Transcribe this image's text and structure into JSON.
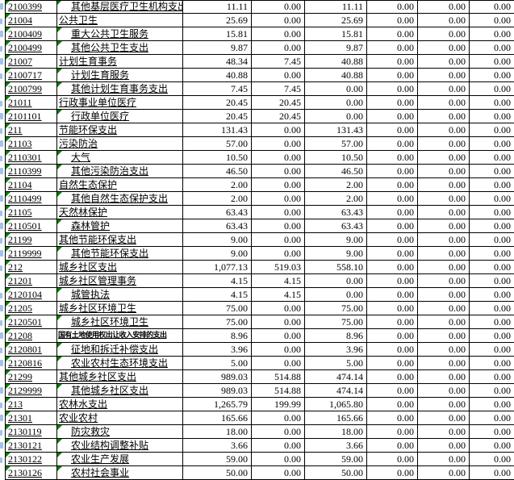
{
  "app": {
    "description": "spreadsheet budget expenditure table (cropped, no headers visible)"
  },
  "colors": {
    "background": "#ffffff",
    "text": "#000000",
    "grid_border": "#000000",
    "error_triangle": "#008000",
    "clipped_text_fragment": "#a3c3e8"
  },
  "icons": {
    "error_indicator": "green corner triangle (number-stored-as-text indicator)"
  },
  "table": {
    "numeric_column_count": 6,
    "rows": [
      {
        "code": "2100399",
        "name": "其他基层医疗卫生机构支出",
        "indent": true,
        "shrink": false,
        "values": [
          "11.11",
          "0.00",
          "11.11",
          "0.00",
          "0.00",
          "0.00"
        ]
      },
      {
        "code": "21004",
        "name": "公共卫生",
        "indent": false,
        "shrink": false,
        "values": [
          "25.69",
          "0.00",
          "25.69",
          "0.00",
          "0.00",
          "0.00"
        ]
      },
      {
        "code": "2100409",
        "name": "重大公共卫生服务",
        "indent": true,
        "shrink": false,
        "values": [
          "15.81",
          "0.00",
          "15.81",
          "0.00",
          "0.00",
          "0.00"
        ]
      },
      {
        "code": "2100499",
        "name": "其他公共卫生支出",
        "indent": true,
        "shrink": false,
        "values": [
          "9.87",
          "0.00",
          "9.87",
          "0.00",
          "0.00",
          "0.00"
        ]
      },
      {
        "code": "21007",
        "name": "计划生育事务",
        "indent": false,
        "shrink": false,
        "values": [
          "48.34",
          "7.45",
          "40.88",
          "0.00",
          "0.00",
          "0.00"
        ]
      },
      {
        "code": "2100717",
        "name": "计划生育服务",
        "indent": true,
        "shrink": false,
        "values": [
          "40.88",
          "0.00",
          "40.88",
          "0.00",
          "0.00",
          "0.00"
        ]
      },
      {
        "code": "2100799",
        "name": "其他计划生育事务支出",
        "indent": true,
        "shrink": false,
        "values": [
          "7.45",
          "7.45",
          "0.00",
          "0.00",
          "0.00",
          "0.00"
        ]
      },
      {
        "code": "21011",
        "name": "行政事业单位医疗",
        "indent": false,
        "shrink": false,
        "values": [
          "20.45",
          "20.45",
          "0.00",
          "0.00",
          "0.00",
          "0.00"
        ]
      },
      {
        "code": "2101101",
        "name": "行政单位医疗",
        "indent": true,
        "shrink": false,
        "values": [
          "20.45",
          "20.45",
          "0.00",
          "0.00",
          "0.00",
          "0.00"
        ]
      },
      {
        "code": "211",
        "name": "节能环保支出",
        "indent": false,
        "shrink": false,
        "values": [
          "131.43",
          "0.00",
          "131.43",
          "0.00",
          "0.00",
          "0.00"
        ]
      },
      {
        "code": "21103",
        "name": "污染防治",
        "indent": false,
        "shrink": false,
        "values": [
          "57.00",
          "0.00",
          "57.00",
          "0.00",
          "0.00",
          "0.00"
        ]
      },
      {
        "code": "2110301",
        "name": "大气",
        "indent": true,
        "shrink": false,
        "values": [
          "10.50",
          "0.00",
          "10.50",
          "0.00",
          "0.00",
          "0.00"
        ]
      },
      {
        "code": "2110399",
        "name": "其他污染防治支出",
        "indent": true,
        "shrink": false,
        "values": [
          "46.50",
          "0.00",
          "46.50",
          "0.00",
          "0.00",
          "0.00"
        ]
      },
      {
        "code": "21104",
        "name": "自然生态保护",
        "indent": false,
        "shrink": false,
        "values": [
          "2.00",
          "0.00",
          "2.00",
          "0.00",
          "0.00",
          "0.00"
        ]
      },
      {
        "code": "2110499",
        "name": "其他自然生态保护支出",
        "indent": true,
        "shrink": false,
        "values": [
          "2.00",
          "0.00",
          "2.00",
          "0.00",
          "0.00",
          "0.00"
        ]
      },
      {
        "code": "21105",
        "name": "天然林保护",
        "indent": false,
        "shrink": false,
        "values": [
          "63.43",
          "0.00",
          "63.43",
          "0.00",
          "0.00",
          "0.00"
        ]
      },
      {
        "code": "2110501",
        "name": "森林管护",
        "indent": true,
        "shrink": false,
        "values": [
          "63.43",
          "0.00",
          "63.43",
          "0.00",
          "0.00",
          "0.00"
        ]
      },
      {
        "code": "21199",
        "name": "其他节能环保支出",
        "indent": false,
        "shrink": false,
        "values": [
          "9.00",
          "0.00",
          "9.00",
          "0.00",
          "0.00",
          "0.00"
        ]
      },
      {
        "code": "2119999",
        "name": "其他节能环保支出",
        "indent": true,
        "shrink": false,
        "values": [
          "9.00",
          "0.00",
          "9.00",
          "0.00",
          "0.00",
          "0.00"
        ]
      },
      {
        "code": "212",
        "name": "城乡社区支出",
        "indent": false,
        "shrink": false,
        "values": [
          "1,077.13",
          "519.03",
          "558.10",
          "0.00",
          "0.00",
          "0.00"
        ]
      },
      {
        "code": "21201",
        "name": "城乡社区管理事务",
        "indent": false,
        "shrink": false,
        "values": [
          "4.15",
          "4.15",
          "0.00",
          "0.00",
          "0.00",
          "0.00"
        ]
      },
      {
        "code": "2120104",
        "name": "城管执法",
        "indent": true,
        "shrink": false,
        "values": [
          "4.15",
          "4.15",
          "0.00",
          "0.00",
          "0.00",
          "0.00"
        ]
      },
      {
        "code": "21205",
        "name": "城乡社区环境卫生",
        "indent": false,
        "shrink": false,
        "values": [
          "75.00",
          "0.00",
          "75.00",
          "0.00",
          "0.00",
          "0.00"
        ]
      },
      {
        "code": "2120501",
        "name": "城乡社区环境卫生",
        "indent": true,
        "shrink": false,
        "values": [
          "75.00",
          "0.00",
          "75.00",
          "0.00",
          "0.00",
          "0.00"
        ]
      },
      {
        "code": "21208",
        "name": "国有土地使用权出让收入安排的支出",
        "indent": false,
        "shrink": true,
        "values": [
          "8.96",
          "0.00",
          "8.96",
          "0.00",
          "0.00",
          "0.00"
        ]
      },
      {
        "code": "2120801",
        "name": "征地和拆迁补偿支出",
        "indent": true,
        "shrink": false,
        "values": [
          "3.96",
          "0.00",
          "3.96",
          "0.00",
          "0.00",
          "0.00"
        ]
      },
      {
        "code": "2120816",
        "name": "农业农村生态环境支出",
        "indent": true,
        "shrink": false,
        "values": [
          "5.00",
          "0.00",
          "5.00",
          "0.00",
          "0.00",
          "0.00"
        ]
      },
      {
        "code": "21299",
        "name": "其他城乡社区支出",
        "indent": false,
        "shrink": false,
        "values": [
          "989.03",
          "514.88",
          "474.14",
          "0.00",
          "0.00",
          "0.00"
        ]
      },
      {
        "code": "2129999",
        "name": "其他城乡社区支出",
        "indent": true,
        "shrink": false,
        "values": [
          "989.03",
          "514.88",
          "474.14",
          "0.00",
          "0.00",
          "0.00"
        ]
      },
      {
        "code": "213",
        "name": "农林水支出",
        "indent": false,
        "shrink": false,
        "values": [
          "1,265.79",
          "199.99",
          "1,065.80",
          "0.00",
          "0.00",
          "0.00"
        ]
      },
      {
        "code": "21301",
        "name": "农业农村",
        "indent": false,
        "shrink": false,
        "values": [
          "165.66",
          "0.00",
          "165.66",
          "0.00",
          "0.00",
          "0.00"
        ]
      },
      {
        "code": "2130119",
        "name": "防灾救灾",
        "indent": true,
        "shrink": false,
        "values": [
          "18.00",
          "0.00",
          "18.00",
          "0.00",
          "0.00",
          "0.00"
        ]
      },
      {
        "code": "2130121",
        "name": "农业结构调整补贴",
        "indent": true,
        "shrink": false,
        "values": [
          "3.66",
          "0.00",
          "3.66",
          "0.00",
          "0.00",
          "0.00"
        ]
      },
      {
        "code": "2130122",
        "name": "农业生产发展",
        "indent": true,
        "shrink": false,
        "values": [
          "59.00",
          "0.00",
          "59.00",
          "0.00",
          "0.00",
          "0.00"
        ]
      },
      {
        "code": "2130126",
        "name": "农村社会事业",
        "indent": true,
        "shrink": false,
        "values": [
          "50.00",
          "0.00",
          "50.00",
          "0.00",
          "0.00",
          "0.00"
        ]
      }
    ]
  }
}
